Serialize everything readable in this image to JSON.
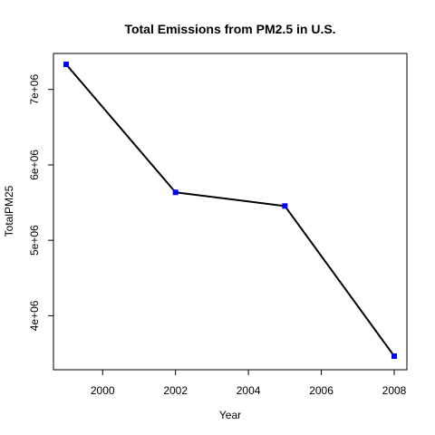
{
  "chart_data": {
    "type": "line",
    "title": "Total Emissions from PM2.5 in U.S.",
    "xlabel": "Year",
    "ylabel": "TotalPM25",
    "x": [
      1999,
      2002,
      2005,
      2008
    ],
    "series": [
      {
        "values": [
          7332967,
          5635780,
          5454703,
          3464206
        ],
        "line_color": "#000000",
        "marker": "square",
        "marker_color": "#0000ff"
      }
    ],
    "xlim": [
      1999,
      2008
    ],
    "ylim": [
      3464206,
      7332967
    ],
    "x_ticks": [
      2000,
      2002,
      2004,
      2006,
      2008
    ],
    "x_tick_labels": [
      "2000",
      "2002",
      "2004",
      "2006",
      "2008"
    ],
    "y_ticks": [
      4000000,
      5000000,
      6000000,
      7000000
    ],
    "y_tick_labels": [
      "4e+06",
      "5e+06",
      "6e+06",
      "7e+06"
    ],
    "grid": false,
    "legend": "none"
  }
}
